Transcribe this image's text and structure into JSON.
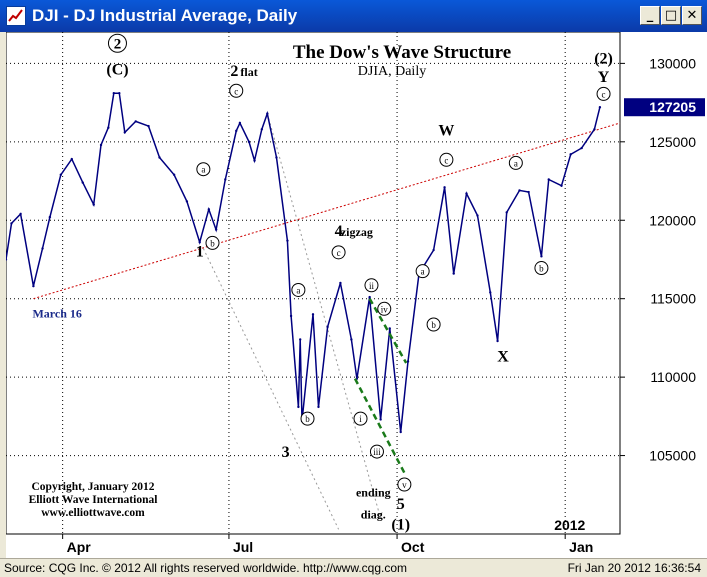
{
  "window": {
    "title": "DJI - DJ Industrial Average, Daily",
    "minimize_glyph": "_",
    "maximize_glyph": "□",
    "close_glyph": "✕",
    "icon": "chart-window-icon"
  },
  "status": {
    "source": "Source: CQG Inc. © 2012 All rights reserved worldwide.  http://www.cqg.com",
    "timestamp": "Fri Jan 20 2012 16:36:54"
  },
  "colors": {
    "price_bars": "#000080",
    "trend_line": "#cc0000",
    "ending_diagonal": "#1a7a1a",
    "wave_lines": "#999999",
    "last_price_bg": "#000080",
    "grid": "#000000"
  },
  "chart_data": {
    "type": "line",
    "title": "The Dow's Wave Structure",
    "subtitle": "DJIA, Daily",
    "xlabel": "",
    "ylabel": "",
    "ylim": [
      100000,
      132000
    ],
    "y_ticks": [
      105000,
      110000,
      115000,
      120000,
      125000,
      130000
    ],
    "y_tick_labels": [
      "105000",
      "110000",
      "115000",
      "120000",
      "125000",
      "130000"
    ],
    "x_range": [
      "2011-03-01",
      "2012-01-31"
    ],
    "x_ticks": [
      "2011-04-01",
      "2011-07-01",
      "2011-10-01",
      "2012-01-01"
    ],
    "x_tick_labels": [
      "Apr",
      "Jul",
      "Oct",
      "Jan"
    ],
    "year_label": "2012",
    "last_price": 127205,
    "last_price_label": "127205",
    "grid": true,
    "series": [
      {
        "values": [
          {
            "x": "2011-03-01",
            "y": 117500
          },
          {
            "x": "2011-03-04",
            "y": 119800
          },
          {
            "x": "2011-03-09",
            "y": 120400
          },
          {
            "x": "2011-03-16",
            "y": 115800
          },
          {
            "x": "2011-03-21",
            "y": 118200
          },
          {
            "x": "2011-03-25",
            "y": 120200
          },
          {
            "x": "2011-03-31",
            "y": 122900
          },
          {
            "x": "2011-04-06",
            "y": 123900
          },
          {
            "x": "2011-04-12",
            "y": 122400
          },
          {
            "x": "2011-04-18",
            "y": 121000
          },
          {
            "x": "2011-04-22",
            "y": 124800
          },
          {
            "x": "2011-04-26",
            "y": 125900
          },
          {
            "x": "2011-04-29",
            "y": 128100
          },
          {
            "x": "2011-05-02",
            "y": 128100
          },
          {
            "x": "2011-05-05",
            "y": 125600
          },
          {
            "x": "2011-05-11",
            "y": 126300
          },
          {
            "x": "2011-05-18",
            "y": 126000
          },
          {
            "x": "2011-05-24",
            "y": 124000
          },
          {
            "x": "2011-06-01",
            "y": 122900
          },
          {
            "x": "2011-06-08",
            "y": 121200
          },
          {
            "x": "2011-06-15",
            "y": 118600
          },
          {
            "x": "2011-06-20",
            "y": 120700
          },
          {
            "x": "2011-06-24",
            "y": 119400
          },
          {
            "x": "2011-06-29",
            "y": 122600
          },
          {
            "x": "2011-07-05",
            "y": 125700
          },
          {
            "x": "2011-07-07",
            "y": 126200
          },
          {
            "x": "2011-07-12",
            "y": 125000
          },
          {
            "x": "2011-07-15",
            "y": 123800
          },
          {
            "x": "2011-07-19",
            "y": 125800
          },
          {
            "x": "2011-07-22",
            "y": 126800
          },
          {
            "x": "2011-07-27",
            "y": 124000
          },
          {
            "x": "2011-08-02",
            "y": 118700
          },
          {
            "x": "2011-08-04",
            "y": 113900
          },
          {
            "x": "2011-08-08",
            "y": 108100
          },
          {
            "x": "2011-08-09",
            "y": 112400
          },
          {
            "x": "2011-08-10",
            "y": 107200
          },
          {
            "x": "2011-08-16",
            "y": 114000
          },
          {
            "x": "2011-08-19",
            "y": 108100
          },
          {
            "x": "2011-08-24",
            "y": 113200
          },
          {
            "x": "2011-08-31",
            "y": 116000
          },
          {
            "x": "2011-09-06",
            "y": 112400
          },
          {
            "x": "2011-09-09",
            "y": 109900
          },
          {
            "x": "2011-09-16",
            "y": 115100
          },
          {
            "x": "2011-09-22",
            "y": 107300
          },
          {
            "x": "2011-09-27",
            "y": 113100
          },
          {
            "x": "2011-10-03",
            "y": 106500
          },
          {
            "x": "2011-10-07",
            "y": 111000
          },
          {
            "x": "2011-10-13",
            "y": 116600
          },
          {
            "x": "2011-10-21",
            "y": 118100
          },
          {
            "x": "2011-10-27",
            "y": 122100
          },
          {
            "x": "2011-11-01",
            "y": 116600
          },
          {
            "x": "2011-11-08",
            "y": 121700
          },
          {
            "x": "2011-11-14",
            "y": 120300
          },
          {
            "x": "2011-11-21",
            "y": 115400
          },
          {
            "x": "2011-11-25",
            "y": 112300
          },
          {
            "x": "2011-11-30",
            "y": 120500
          },
          {
            "x": "2011-12-07",
            "y": 121900
          },
          {
            "x": "2011-12-12",
            "y": 121800
          },
          {
            "x": "2011-12-19",
            "y": 117700
          },
          {
            "x": "2011-12-23",
            "y": 122600
          },
          {
            "x": "2011-12-30",
            "y": 122200
          },
          {
            "x": "2012-01-04",
            "y": 124200
          },
          {
            "x": "2012-01-10",
            "y": 124600
          },
          {
            "x": "2012-01-17",
            "y": 125800
          },
          {
            "x": "2012-01-20",
            "y": 127205
          }
        ]
      }
    ],
    "trendline": {
      "from": {
        "x": "2011-03-16",
        "y": 115000
      },
      "to": {
        "x": "2012-01-31",
        "y": 126200
      }
    },
    "wave_lines": [
      {
        "from": {
          "x": "2011-07-22",
          "y": 126800
        },
        "to": {
          "x": "2011-09-22",
          "y": 101000
        }
      },
      {
        "from": {
          "x": "2011-06-17",
          "y": 118200
        },
        "to": {
          "x": "2011-08-30",
          "y": 100300
        }
      }
    ],
    "ending_diagonal_lines": [
      {
        "from": {
          "x": "2011-09-16",
          "y": 115000
        },
        "to": {
          "x": "2011-10-06",
          "y": 110900
        }
      },
      {
        "from": {
          "x": "2011-09-08",
          "y": 109900
        },
        "to": {
          "x": "2011-10-05",
          "y": 103900
        }
      }
    ],
    "annotations": [
      {
        "text": "2",
        "x": "2011-05-01",
        "y": 130900,
        "circled": true,
        "bold": true
      },
      {
        "text": "(C)",
        "x": "2011-05-01",
        "y": 129300,
        "bold": true
      },
      {
        "text": "2",
        "x": "2011-07-04",
        "y": 129200,
        "bold": true
      },
      {
        "text": "flat",
        "x": "2011-07-12",
        "y": 129200,
        "bold": true,
        "small": true
      },
      {
        "text": "c",
        "x": "2011-07-05",
        "y": 128000,
        "circled": true
      },
      {
        "text": "a",
        "x": "2011-06-17",
        "y": 123000,
        "circled": true
      },
      {
        "text": "1",
        "x": "2011-06-15",
        "y": 117700,
        "bold": true
      },
      {
        "text": "b",
        "x": "2011-06-22",
        "y": 118300,
        "circled": true
      },
      {
        "text": "4",
        "x": "2011-08-30",
        "y": 119000,
        "bold": true
      },
      {
        "text": "zigzag",
        "x": "2011-09-09",
        "y": 119000,
        "bold": true,
        "small": true
      },
      {
        "text": "c",
        "x": "2011-08-30",
        "y": 117700,
        "circled": true
      },
      {
        "text": "a",
        "x": "2011-08-08",
        "y": 115300,
        "circled": true
      },
      {
        "text": "b",
        "x": "2011-08-13",
        "y": 107100,
        "circled": true
      },
      {
        "text": "3",
        "x": "2011-08-01",
        "y": 104900,
        "bold": true
      },
      {
        "text": "ii",
        "x": "2011-09-17",
        "y": 115600,
        "circled": true
      },
      {
        "text": "iv",
        "x": "2011-09-24",
        "y": 114100,
        "circled": true
      },
      {
        "text": "i",
        "x": "2011-09-11",
        "y": 107100,
        "circled": true
      },
      {
        "text": "iii",
        "x": "2011-09-20",
        "y": 105000,
        "circled": true
      },
      {
        "text": "v",
        "x": "2011-10-05",
        "y": 102900,
        "circled": true
      },
      {
        "text": "ending",
        "x": "2011-09-18",
        "y": 102400,
        "bold": true,
        "small": true
      },
      {
        "text": "diag.",
        "x": "2011-09-18",
        "y": 101000,
        "bold": true,
        "small": true
      },
      {
        "text": "5",
        "x": "2011-10-03",
        "y": 101600,
        "bold": true
      },
      {
        "text": "(1)",
        "x": "2011-10-03",
        "y": 100300,
        "bold": true
      },
      {
        "text": "a",
        "x": "2011-10-15",
        "y": 116500,
        "circled": true
      },
      {
        "text": "b",
        "x": "2011-10-21",
        "y": 113100,
        "circled": true
      },
      {
        "text": "W",
        "x": "2011-10-28",
        "y": 125400,
        "bold": true
      },
      {
        "text": "c",
        "x": "2011-10-28",
        "y": 123600,
        "circled": true
      },
      {
        "text": "X",
        "x": "2011-11-28",
        "y": 111000,
        "bold": true
      },
      {
        "text": "a",
        "x": "2011-12-05",
        "y": 123400,
        "circled": true
      },
      {
        "text": "b",
        "x": "2011-12-19",
        "y": 116700,
        "circled": true
      },
      {
        "text": "2",
        "x": "2012-01-22",
        "y": 130000,
        "bold": true,
        "paren": true
      },
      {
        "text": "Y",
        "x": "2012-01-22",
        "y": 128800,
        "bold": true
      },
      {
        "text": "c",
        "x": "2012-01-22",
        "y": 127800,
        "circled": true
      },
      {
        "text": "March 16",
        "x": "2011-03-29",
        "y": 113800,
        "bold": true,
        "small": true,
        "blue": true
      }
    ],
    "copyright_lines": [
      "Copyright, January 2012",
      "Elliott Wave International",
      "www.elliottwave.com"
    ]
  }
}
